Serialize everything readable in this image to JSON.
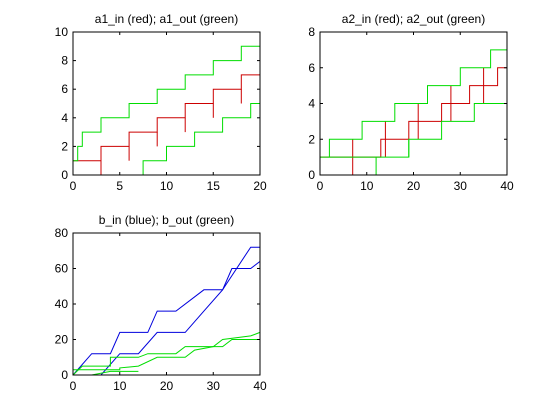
{
  "chart_data": [
    {
      "type": "line",
      "title": "a1_in (red); a1_out (green)",
      "xlabel": "",
      "ylabel": "",
      "xlim": [
        0,
        20
      ],
      "ylim": [
        0,
        10
      ],
      "xticks": [
        0,
        5,
        10,
        15,
        20
      ],
      "yticks": [
        0,
        2,
        4,
        6,
        8,
        10
      ],
      "grid": false,
      "colors": {
        "red": "#cc0000",
        "green": "#00dd00"
      },
      "series": [
        {
          "color": "red",
          "points": [
            [
              0,
              0
            ],
            [
              1.5,
              0
            ]
          ]
        },
        {
          "color": "red",
          "points": [
            [
              0,
              1
            ],
            [
              3,
              1
            ],
            [
              3,
              2
            ],
            [
              6,
              2
            ],
            [
              6,
              3
            ],
            [
              9,
              3
            ],
            [
              9,
              4
            ],
            [
              12,
              4
            ],
            [
              12,
              5
            ],
            [
              15,
              5
            ],
            [
              15,
              6
            ],
            [
              18,
              6
            ],
            [
              18,
              7
            ],
            [
              20,
              7
            ]
          ]
        },
        {
          "color": "red",
          "points": [
            [
              3,
              0
            ],
            [
              3,
              1
            ]
          ]
        },
        {
          "color": "red",
          "points": [
            [
              6,
              1
            ],
            [
              6,
              2
            ]
          ]
        },
        {
          "color": "red",
          "points": [
            [
              9,
              2
            ],
            [
              9,
              3
            ]
          ]
        },
        {
          "color": "red",
          "points": [
            [
              12,
              3
            ],
            [
              12,
              4
            ]
          ]
        },
        {
          "color": "red",
          "points": [
            [
              15,
              4
            ],
            [
              15,
              5
            ]
          ]
        },
        {
          "color": "red",
          "points": [
            [
              18,
              5
            ],
            [
              18,
              6
            ]
          ]
        },
        {
          "color": "red",
          "points": [
            [
              0,
              0
            ],
            [
              0,
              1
            ]
          ]
        },
        {
          "color": "green",
          "points": [
            [
              0,
              1
            ],
            [
              0.5,
              1
            ],
            [
              0.5,
              2
            ],
            [
              1,
              2
            ],
            [
              1,
              3
            ],
            [
              3,
              3
            ],
            [
              3,
              4
            ],
            [
              6,
              4
            ],
            [
              6,
              5
            ],
            [
              9,
              5
            ],
            [
              9,
              6
            ],
            [
              12,
              6
            ],
            [
              12,
              7
            ],
            [
              15,
              7
            ],
            [
              15,
              8
            ],
            [
              18,
              8
            ],
            [
              18,
              9
            ],
            [
              20,
              9
            ]
          ]
        },
        {
          "color": "green",
          "points": [
            [
              7.5,
              0
            ],
            [
              7.5,
              1
            ],
            [
              10,
              1
            ],
            [
              10,
              2
            ],
            [
              13,
              2
            ],
            [
              13,
              3
            ],
            [
              16,
              3
            ],
            [
              16,
              4
            ],
            [
              19,
              4
            ],
            [
              19,
              5
            ],
            [
              20,
              5
            ]
          ]
        }
      ]
    },
    {
      "type": "line",
      "title": "a2_in (red); a2_out (green)",
      "xlabel": "",
      "ylabel": "",
      "xlim": [
        0,
        40
      ],
      "ylim": [
        0,
        8
      ],
      "xticks": [
        0,
        10,
        20,
        30,
        40
      ],
      "yticks": [
        0,
        2,
        4,
        6,
        8
      ],
      "grid": false,
      "colors": {
        "red": "#cc0000",
        "green": "#00dd00"
      },
      "series": [
        {
          "color": "red",
          "points": [
            [
              0,
              1
            ],
            [
              13,
              1
            ],
            [
              13,
              2
            ],
            [
              19,
              2
            ],
            [
              19,
              3
            ],
            [
              26,
              3
            ],
            [
              26,
              4
            ],
            [
              32,
              4
            ],
            [
              32,
              5
            ],
            [
              38,
              5
            ],
            [
              38,
              6
            ],
            [
              40,
              6
            ]
          ]
        },
        {
          "color": "red",
          "points": [
            [
              7,
              0
            ],
            [
              7,
              2
            ]
          ]
        },
        {
          "color": "red",
          "points": [
            [
              14,
              1
            ],
            [
              14,
              3
            ]
          ]
        },
        {
          "color": "red",
          "points": [
            [
              21,
              2
            ],
            [
              21,
              4
            ]
          ]
        },
        {
          "color": "red",
          "points": [
            [
              28,
              3
            ],
            [
              28,
              5
            ]
          ]
        },
        {
          "color": "red",
          "points": [
            [
              35,
              4
            ],
            [
              35,
              6
            ]
          ]
        },
        {
          "color": "green",
          "points": [
            [
              2,
              1
            ],
            [
              2,
              2
            ],
            [
              9,
              2
            ],
            [
              9,
              3
            ],
            [
              16,
              3
            ],
            [
              16,
              4
            ],
            [
              23,
              4
            ],
            [
              23,
              5
            ],
            [
              30,
              5
            ],
            [
              30,
              6
            ],
            [
              36.5,
              6
            ],
            [
              36.5,
              7
            ],
            [
              40,
              7
            ]
          ]
        },
        {
          "color": "green",
          "points": [
            [
              0,
              1
            ],
            [
              12,
              1
            ],
            [
              12,
              0
            ]
          ]
        },
        {
          "color": "green",
          "points": [
            [
              12,
              1
            ],
            [
              19,
              1
            ],
            [
              19,
              2
            ],
            [
              26,
              2
            ],
            [
              26,
              3
            ],
            [
              33,
              3
            ],
            [
              33,
              4
            ],
            [
              40,
              4
            ]
          ]
        },
        {
          "color": "green",
          "points": [
            [
              19,
              1
            ],
            [
              19,
              2
            ]
          ]
        }
      ]
    },
    {
      "type": "line",
      "title": "b_in (blue); b_out (green)",
      "xlabel": "",
      "ylabel": "",
      "xlim": [
        0,
        40
      ],
      "ylim": [
        0,
        80
      ],
      "xticks": [
        0,
        10,
        20,
        30,
        40
      ],
      "yticks": [
        0,
        20,
        40,
        60,
        80
      ],
      "grid": false,
      "colors": {
        "blue": "#0000dd",
        "green": "#00dd00"
      },
      "series": [
        {
          "color": "blue",
          "points": [
            [
              0,
              0
            ],
            [
              4,
              12
            ],
            [
              8,
              12
            ],
            [
              10,
              24
            ],
            [
              16,
              24
            ],
            [
              18,
              36
            ],
            [
              22,
              36
            ],
            [
              28,
              48
            ],
            [
              32,
              48
            ],
            [
              38,
              72
            ],
            [
              40,
              72
            ]
          ]
        },
        {
          "color": "blue",
          "points": [
            [
              0,
              0
            ],
            [
              6,
              0
            ],
            [
              10,
              12
            ],
            [
              14,
              12
            ],
            [
              18,
              24
            ],
            [
              24,
              24
            ],
            [
              28,
              36
            ],
            [
              32,
              48
            ],
            [
              34,
              60
            ],
            [
              38,
              60
            ],
            [
              40,
              64
            ]
          ]
        },
        {
          "color": "green",
          "points": [
            [
              0,
              0
            ],
            [
              2,
              5
            ],
            [
              8,
              5
            ],
            [
              8,
              10
            ],
            [
              14,
              10
            ],
            [
              16,
              12
            ],
            [
              22,
              12
            ],
            [
              24,
              16
            ],
            [
              32,
              16
            ],
            [
              34,
              20
            ],
            [
              40,
              20
            ]
          ]
        },
        {
          "color": "green",
          "points": [
            [
              0,
              3
            ],
            [
              10,
              3
            ],
            [
              10,
              4
            ],
            [
              14,
              5
            ],
            [
              18,
              10
            ],
            [
              24,
              10
            ],
            [
              26,
              14
            ],
            [
              30,
              16
            ],
            [
              32,
              20
            ],
            [
              38,
              22
            ],
            [
              40,
              24
            ]
          ]
        },
        {
          "color": "green",
          "points": [
            [
              4,
              0
            ],
            [
              8,
              2
            ],
            [
              14,
              2
            ]
          ]
        }
      ]
    }
  ]
}
